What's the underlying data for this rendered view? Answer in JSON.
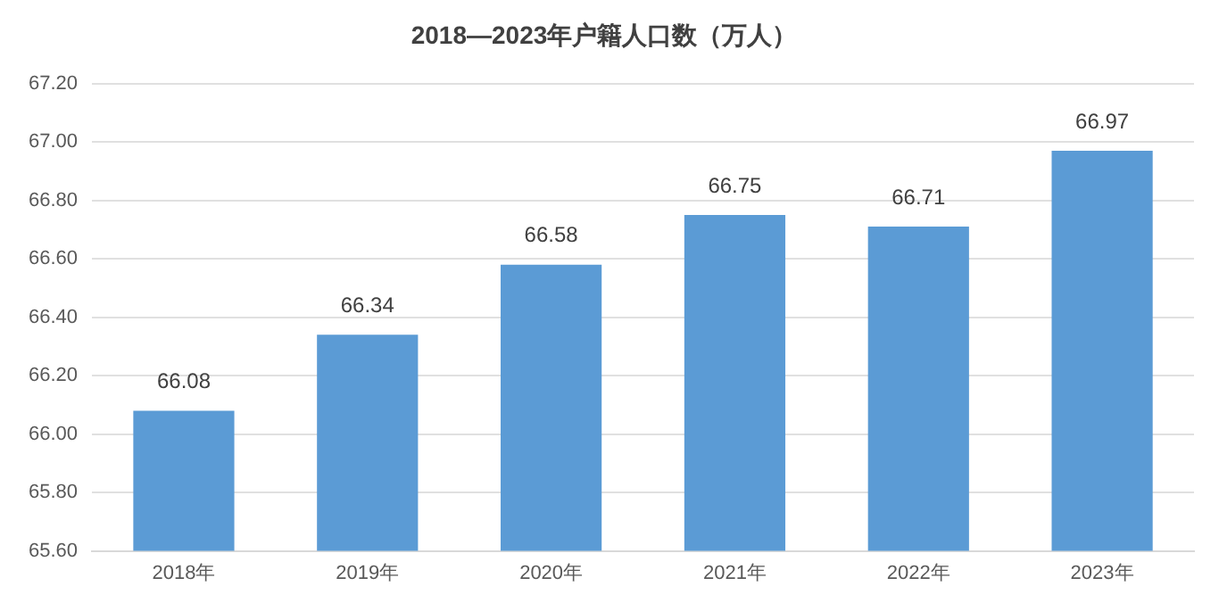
{
  "chart_data": {
    "type": "bar",
    "title": "2018—2023年户籍人口数（万人）",
    "categories": [
      "2018年",
      "2019年",
      "2020年",
      "2021年",
      "2022年",
      "2023年"
    ],
    "values": [
      66.08,
      66.34,
      66.58,
      66.75,
      66.71,
      66.97
    ],
    "color": "#5b9bd5",
    "ylim": [
      65.6,
      67.2
    ],
    "yticks": [
      {
        "value": 65.6,
        "label": "65.60"
      },
      {
        "value": 65.8,
        "label": "65.80"
      },
      {
        "value": 66,
        "label": "66.00"
      },
      {
        "value": 66.2,
        "label": "66.20"
      },
      {
        "value": 66.4,
        "label": "66.40"
      },
      {
        "value": 66.6,
        "label": "66.60"
      },
      {
        "value": 66.8,
        "label": "66.80"
      },
      {
        "value": 67,
        "label": "67.00"
      },
      {
        "value": 67.2,
        "label": "67.20"
      }
    ],
    "grid": "y",
    "data_labels": true,
    "legend": false
  }
}
